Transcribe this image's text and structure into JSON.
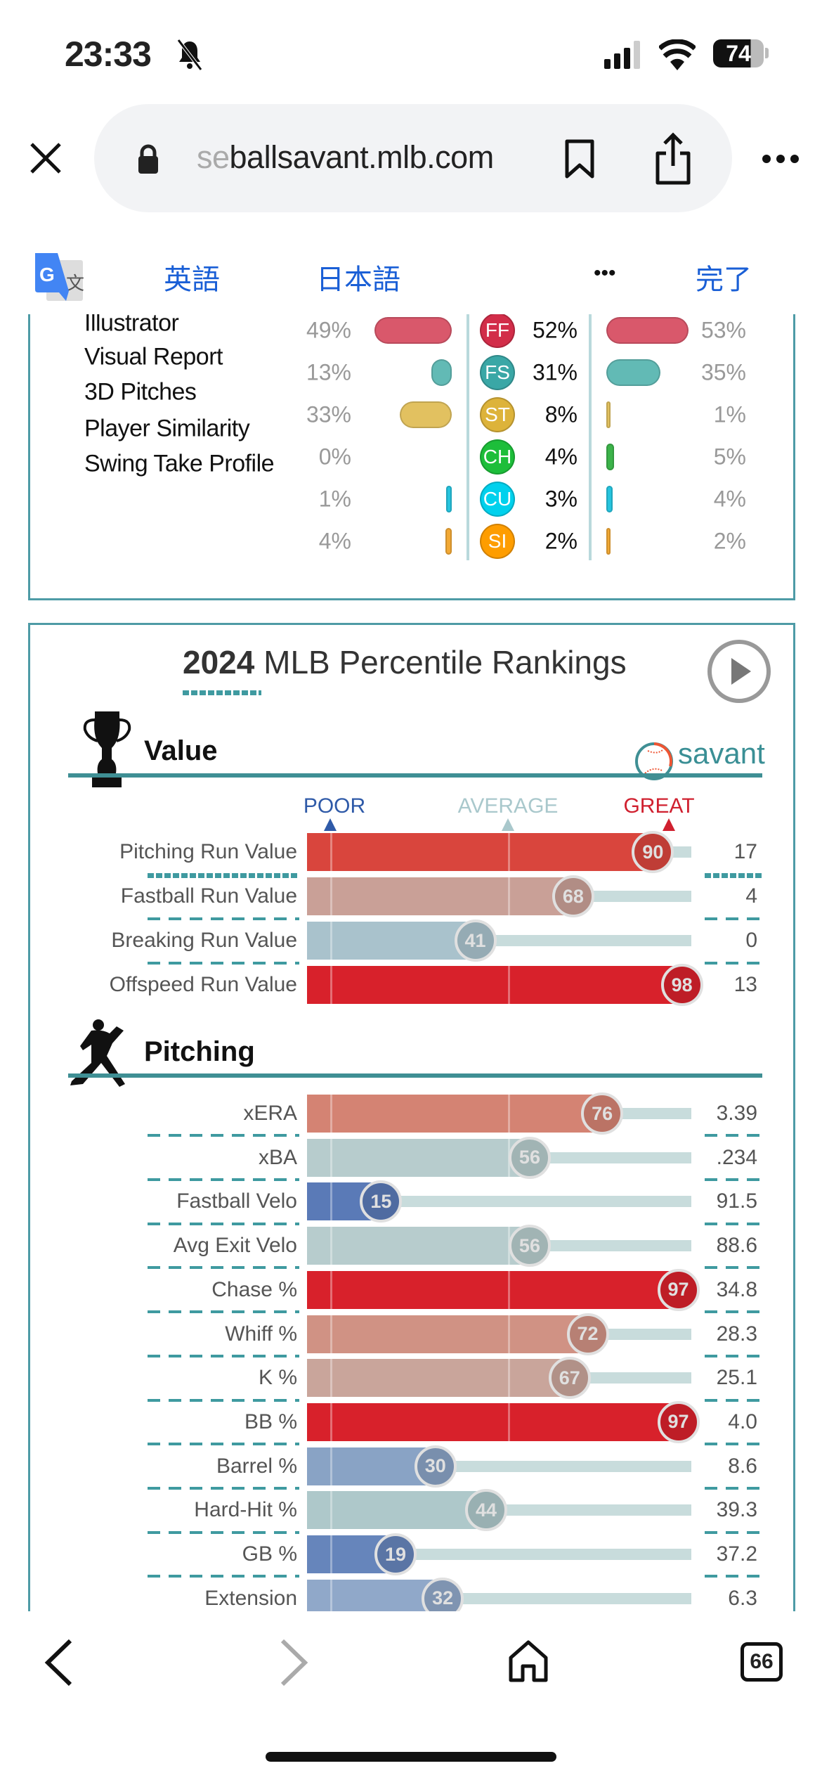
{
  "status": {
    "time": "23:33",
    "battery": "74",
    "icons": [
      "bell-slash-icon",
      "signal-icon",
      "wifi-icon",
      "battery-icon"
    ]
  },
  "browser": {
    "url_faded": "se",
    "url": "ballsavant.mlb.com"
  },
  "translate": {
    "source_lang": "英語",
    "target_lang": "日本語",
    "more": "•••",
    "done": "完了"
  },
  "pitch_mix": {
    "menu": [
      "Illustrator",
      "Visual Report",
      "3D Pitches",
      "Player Similarity",
      "Swing Take Profile"
    ],
    "rows": [
      {
        "code": "FF",
        "left": "49%",
        "left_v": 49,
        "mid": "52%",
        "right": "53%",
        "right_v": 53,
        "color": "#d22d49",
        "bar": "#d9586b"
      },
      {
        "code": "FS",
        "left": "13%",
        "left_v": 13,
        "mid": "31%",
        "right": "35%",
        "right_v": 35,
        "color": "#3aa7a6",
        "bar": "#62bab5"
      },
      {
        "code": "ST",
        "left": "33%",
        "left_v": 33,
        "mid": "8%",
        "right": "1%",
        "right_v": 1,
        "color": "#ddb33a",
        "bar": "#e2c160"
      },
      {
        "code": "CH",
        "left": "0%",
        "left_v": 0,
        "mid": "4%",
        "right": "5%",
        "right_v": 5,
        "color": "#1dbe3a",
        "bar": "#3cb34a"
      },
      {
        "code": "CU",
        "left": "1%",
        "left_v": 1,
        "mid": "3%",
        "right": "4%",
        "right_v": 4,
        "color": "#00d1ed",
        "bar": "#26c4de"
      },
      {
        "code": "SI",
        "left": "4%",
        "left_v": 4,
        "mid": "2%",
        "right": "2%",
        "right_v": 2,
        "color": "#fe9d00",
        "bar": "#f2a935"
      }
    ]
  },
  "percentile": {
    "title_year": "2024",
    "title_rest": " MLB Percentile Rankings",
    "legend": {
      "poor": "POOR",
      "average": "AVERAGE",
      "great": "GREAT",
      "poor_color": "#2f5aa8",
      "average_color": "#a9c8cc",
      "great_color": "#d0202f"
    },
    "brand": "savant",
    "sections": [
      {
        "title": "Value",
        "rows": [
          {
            "label": "Pitching Run Value",
            "pct": 90,
            "value": "17",
            "color": "#d9453d"
          },
          {
            "label": "Fastball Run Value",
            "pct": 68,
            "value": "4",
            "color": "#c9a097"
          },
          {
            "label": "Breaking Run Value",
            "pct": 41,
            "value": "0",
            "color": "#a9c2cc"
          },
          {
            "label": "Offspeed Run Value",
            "pct": 98,
            "value": "13",
            "color": "#d8212b"
          }
        ]
      },
      {
        "title": "Pitching",
        "rows": [
          {
            "label": "xERA",
            "pct": 76,
            "value": "3.39",
            "color": "#d48373"
          },
          {
            "label": "xBA",
            "pct": 56,
            "value": ".234",
            "color": "#b7cccd"
          },
          {
            "label": "Fastball Velo",
            "pct": 15,
            "value": "91.5",
            "color": "#5a7ab7"
          },
          {
            "label": "Avg Exit Velo",
            "pct": 56,
            "value": "88.6",
            "color": "#b7cccd"
          },
          {
            "label": "Chase %",
            "pct": 97,
            "value": "34.8",
            "color": "#d8212b"
          },
          {
            "label": "Whiff %",
            "pct": 72,
            "value": "28.3",
            "color": "#d09284"
          },
          {
            "label": "K %",
            "pct": 67,
            "value": "25.1",
            "color": "#c9a59b"
          },
          {
            "label": "BB %",
            "pct": 97,
            "value": "4.0",
            "color": "#d8212b"
          },
          {
            "label": "Barrel %",
            "pct": 30,
            "value": "8.6",
            "color": "#89a3c5"
          },
          {
            "label": "Hard-Hit %",
            "pct": 44,
            "value": "39.3",
            "color": "#aec8ca"
          },
          {
            "label": "GB %",
            "pct": 19,
            "value": "37.2",
            "color": "#6685bb"
          },
          {
            "label": "Extension",
            "pct": 32,
            "value": "6.3",
            "color": "#90a8c9"
          }
        ]
      }
    ]
  },
  "toolbar": {
    "tabs_count": "66"
  }
}
